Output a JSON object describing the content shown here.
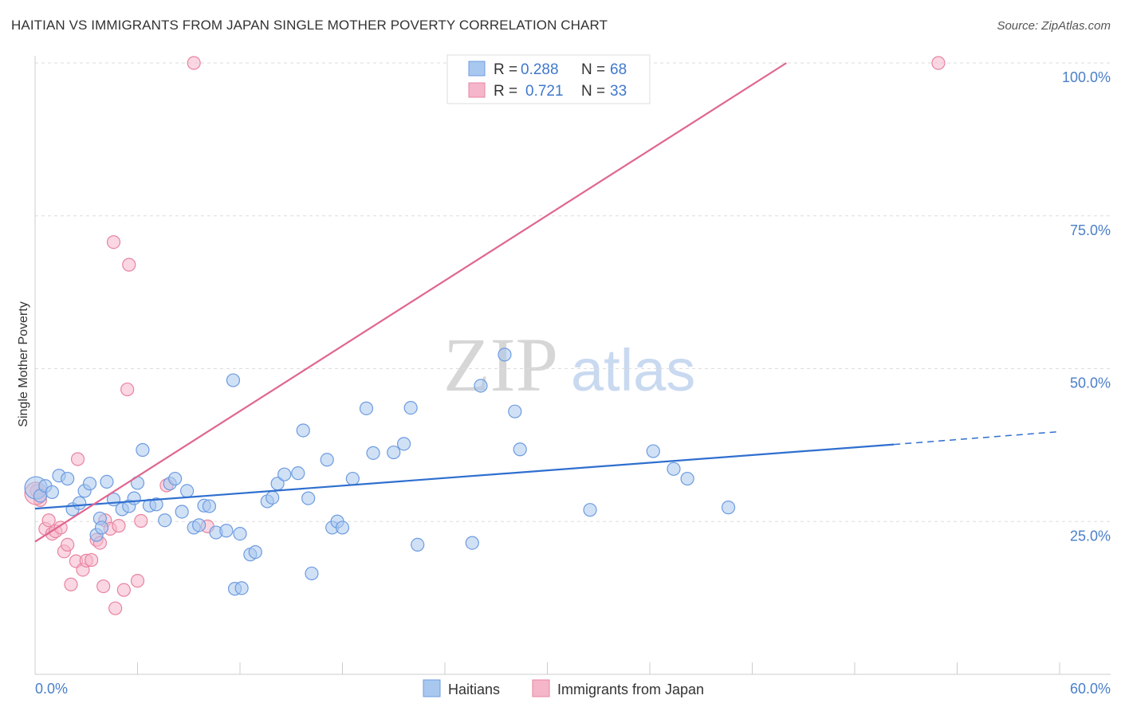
{
  "title": "HAITIAN VS IMMIGRANTS FROM JAPAN SINGLE MOTHER POVERTY CORRELATION CHART",
  "source": "Source: ZipAtlas.com",
  "watermark": {
    "zip": "ZIP",
    "atlas": "atlas"
  },
  "colors": {
    "blue_fill": "#a9c8ef",
    "blue_stroke": "#6d9be0",
    "blue_line": "#2f6fcf",
    "pink_fill": "#f5b6ca",
    "pink_stroke": "#e8849f",
    "pink_line": "#e06690",
    "axis_label": "#4a7fc9",
    "grid": "#dddddd"
  },
  "legend": {
    "r_label": "R =",
    "n_label": "N =",
    "blue": {
      "r": "0.288",
      "n": "68"
    },
    "pink": {
      "r": "0.721",
      "n": "33"
    }
  },
  "chart_data": {
    "type": "scatter",
    "xlabel": "",
    "ylabel": "Single Mother Poverty",
    "xlim": [
      0,
      60
    ],
    "ylim": [
      0,
      100
    ],
    "x_tick_labels": [
      "0.0%",
      "60.0%"
    ],
    "y_ticks": [
      25,
      50,
      75,
      100
    ],
    "y_tick_labels": [
      "25.0%",
      "50.0%",
      "75.0%",
      "100.0%"
    ],
    "series": [
      {
        "name": "Haitians",
        "r": 0.288,
        "n": 68,
        "trend": {
          "x0": 0,
          "y0": 27.1,
          "x1": 50.3,
          "y1": 37.6,
          "dash_to_x": 60,
          "dash_to_y": 39.7
        },
        "points": [
          [
            0.05,
            30.5
          ],
          [
            0.3,
            29.2
          ],
          [
            0.6,
            30.8
          ],
          [
            1.0,
            29.8
          ],
          [
            1.4,
            32.5
          ],
          [
            1.9,
            32.0
          ],
          [
            2.2,
            27.0
          ],
          [
            2.6,
            28.0
          ],
          [
            2.9,
            30.0
          ],
          [
            3.2,
            31.2
          ],
          [
            3.6,
            22.8
          ],
          [
            3.8,
            25.5
          ],
          [
            3.9,
            24.0
          ],
          [
            4.2,
            31.5
          ],
          [
            4.6,
            28.6
          ],
          [
            5.1,
            27.0
          ],
          [
            5.5,
            27.5
          ],
          [
            5.8,
            28.8
          ],
          [
            6.0,
            31.3
          ],
          [
            6.3,
            36.7
          ],
          [
            6.7,
            27.6
          ],
          [
            7.1,
            27.8
          ],
          [
            7.6,
            25.2
          ],
          [
            7.9,
            31.2
          ],
          [
            8.2,
            32.0
          ],
          [
            8.6,
            26.6
          ],
          [
            8.9,
            30.0
          ],
          [
            9.3,
            24.0
          ],
          [
            9.6,
            24.4
          ],
          [
            9.9,
            27.6
          ],
          [
            10.2,
            27.5
          ],
          [
            10.6,
            23.2
          ],
          [
            11.2,
            23.5
          ],
          [
            12.0,
            23.0
          ],
          [
            11.6,
            48.1
          ],
          [
            11.7,
            14.0
          ],
          [
            12.1,
            14.1
          ],
          [
            12.6,
            19.6
          ],
          [
            12.9,
            20.0
          ],
          [
            13.6,
            28.3
          ],
          [
            13.9,
            28.9
          ],
          [
            14.2,
            31.2
          ],
          [
            14.6,
            32.7
          ],
          [
            15.4,
            32.9
          ],
          [
            15.7,
            39.9
          ],
          [
            16.0,
            28.8
          ],
          [
            16.2,
            16.5
          ],
          [
            17.1,
            35.1
          ],
          [
            17.4,
            24.0
          ],
          [
            17.7,
            25.0
          ],
          [
            18.0,
            24.0
          ],
          [
            18.6,
            32.0
          ],
          [
            19.4,
            43.5
          ],
          [
            19.8,
            36.2
          ],
          [
            21.0,
            36.3
          ],
          [
            21.6,
            37.7
          ],
          [
            22.0,
            43.6
          ],
          [
            22.4,
            21.2
          ],
          [
            25.6,
            21.5
          ],
          [
            26.1,
            47.2
          ],
          [
            27.5,
            52.3
          ],
          [
            28.1,
            43.0
          ],
          [
            28.4,
            36.8
          ],
          [
            32.5,
            26.9
          ],
          [
            36.2,
            36.5
          ],
          [
            37.4,
            33.6
          ],
          [
            38.2,
            32.0
          ],
          [
            40.6,
            27.3
          ]
        ]
      },
      {
        "name": "Immigrants from Japan",
        "r": 0.721,
        "n": 33,
        "trend": {
          "x0": 0,
          "y0": 21.7,
          "x1": 44.0,
          "y1": 100.0
        },
        "points": [
          [
            0.1,
            30.0
          ],
          [
            0.3,
            28.5
          ],
          [
            0.6,
            23.8
          ],
          [
            0.8,
            25.2
          ],
          [
            1.0,
            23.0
          ],
          [
            1.2,
            23.4
          ],
          [
            1.5,
            24.0
          ],
          [
            1.7,
            20.1
          ],
          [
            1.9,
            21.2
          ],
          [
            2.1,
            14.7
          ],
          [
            2.4,
            18.5
          ],
          [
            2.5,
            35.2
          ],
          [
            2.8,
            17.1
          ],
          [
            3.0,
            18.6
          ],
          [
            3.3,
            18.7
          ],
          [
            3.6,
            22.0
          ],
          [
            3.8,
            21.5
          ],
          [
            4.0,
            14.4
          ],
          [
            4.1,
            25.2
          ],
          [
            4.4,
            23.8
          ],
          [
            4.6,
            70.7
          ],
          [
            4.7,
            10.8
          ],
          [
            4.9,
            24.3
          ],
          [
            5.2,
            13.8
          ],
          [
            5.4,
            46.6
          ],
          [
            5.5,
            67.0
          ],
          [
            6.0,
            15.3
          ],
          [
            6.2,
            25.1
          ],
          [
            7.7,
            30.9
          ],
          [
            9.3,
            100.0
          ],
          [
            10.1,
            24.2
          ],
          [
            52.9,
            100.0
          ],
          [
            0.05,
            29.6
          ]
        ]
      }
    ]
  }
}
